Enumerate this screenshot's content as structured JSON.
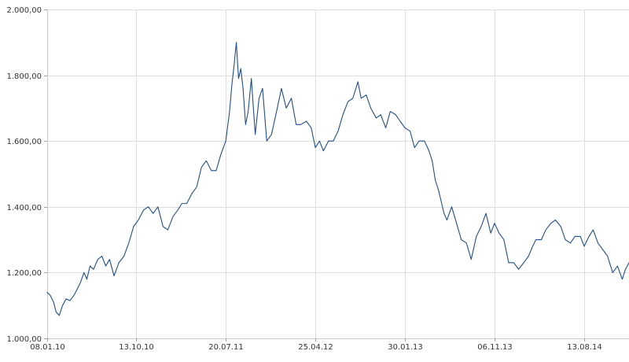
{
  "chart_data": {
    "type": "line",
    "title": "",
    "xlabel": "",
    "ylabel": "",
    "ylim": [
      1000,
      2000
    ],
    "xlim": [
      "2010-01-08",
      "2014-12-31"
    ],
    "grid": true,
    "legend": "none",
    "colors": {
      "line": "#1f4e8c",
      "grid": "#dedede",
      "axis": "#c9c9c9",
      "text": "#333333"
    },
    "y_ticks": [
      {
        "value": 1000,
        "label": "1.000,00"
      },
      {
        "value": 1200,
        "label": "1.200,00"
      },
      {
        "value": 1400,
        "label": "1.400,00"
      },
      {
        "value": 1600,
        "label": "1.600,00"
      },
      {
        "value": 1800,
        "label": "1.800,00"
      },
      {
        "value": 2000,
        "label": "2.000,00"
      }
    ],
    "x_ticks": [
      {
        "date": "2010-01-08",
        "label": "08.01.10"
      },
      {
        "date": "2010-10-13",
        "label": "13.10.10"
      },
      {
        "date": "2011-07-20",
        "label": "20.07.11"
      },
      {
        "date": "2012-04-25",
        "label": "25.04.12"
      },
      {
        "date": "2013-01-30",
        "label": "30.01.13"
      },
      {
        "date": "2013-11-06",
        "label": "06.11.13"
      },
      {
        "date": "2014-08-13",
        "label": "13.08.14"
      }
    ],
    "series": [
      {
        "x": [
          "2010-01-08",
          "2010-01-18",
          "2010-01-28",
          "2010-02-05",
          "2010-02-15",
          "2010-02-25",
          "2010-03-08",
          "2010-03-20",
          "2010-04-01",
          "2010-04-12",
          "2010-04-22",
          "2010-05-03",
          "2010-05-12",
          "2010-05-22",
          "2010-06-02",
          "2010-06-15",
          "2010-06-28",
          "2010-07-10",
          "2010-07-22",
          "2010-08-05",
          "2010-08-20",
          "2010-09-05",
          "2010-09-20",
          "2010-10-05",
          "2010-10-20",
          "2010-11-05",
          "2010-11-20",
          "2010-12-05",
          "2010-12-20",
          "2011-01-05",
          "2011-01-20",
          "2011-02-05",
          "2011-02-20",
          "2011-03-05",
          "2011-03-20",
          "2011-04-05",
          "2011-04-20",
          "2011-05-05",
          "2011-05-20",
          "2011-06-05",
          "2011-06-20",
          "2011-07-05",
          "2011-07-20",
          "2011-08-01",
          "2011-08-08",
          "2011-08-15",
          "2011-08-22",
          "2011-08-29",
          "2011-09-05",
          "2011-09-12",
          "2011-09-20",
          "2011-09-28",
          "2011-10-08",
          "2011-10-20",
          "2011-11-01",
          "2011-11-12",
          "2011-11-25",
          "2011-12-10",
          "2011-12-28",
          "2012-01-10",
          "2012-01-25",
          "2012-02-10",
          "2012-02-25",
          "2012-03-10",
          "2012-03-28",
          "2012-04-12",
          "2012-04-25",
          "2012-05-08",
          "2012-05-20",
          "2012-06-05",
          "2012-06-20",
          "2012-07-05",
          "2012-07-20",
          "2012-08-05",
          "2012-08-20",
          "2012-09-05",
          "2012-09-15",
          "2012-10-01",
          "2012-10-15",
          "2012-11-01",
          "2012-11-15",
          "2012-12-01",
          "2012-12-15",
          "2013-01-01",
          "2013-01-15",
          "2013-01-30",
          "2013-02-15",
          "2013-03-01",
          "2013-03-15",
          "2013-04-01",
          "2013-04-15",
          "2013-04-25",
          "2013-05-05",
          "2013-05-15",
          "2013-06-01",
          "2013-06-10",
          "2013-06-25",
          "2013-07-10",
          "2013-07-25",
          "2013-08-10",
          "2013-08-25",
          "2013-09-10",
          "2013-09-25",
          "2013-10-10",
          "2013-10-25",
          "2013-11-06",
          "2013-11-20",
          "2013-12-05",
          "2013-12-20",
          "2014-01-05",
          "2014-01-20",
          "2014-02-05",
          "2014-02-20",
          "2014-03-05",
          "2014-03-15",
          "2014-04-01",
          "2014-04-15",
          "2014-05-01",
          "2014-05-15",
          "2014-06-01",
          "2014-06-15",
          "2014-07-01",
          "2014-07-15",
          "2014-08-01",
          "2014-08-13",
          "2014-08-28",
          "2014-09-10",
          "2014-09-25",
          "2014-10-10",
          "2014-10-25",
          "2014-11-10",
          "2014-11-25",
          "2014-12-10",
          "2014-12-20",
          "2014-12-31"
        ],
        "y": [
          1140,
          1130,
          1110,
          1080,
          1070,
          1100,
          1120,
          1115,
          1130,
          1150,
          1170,
          1200,
          1180,
          1220,
          1210,
          1240,
          1250,
          1220,
          1240,
          1190,
          1230,
          1250,
          1290,
          1340,
          1360,
          1390,
          1400,
          1380,
          1400,
          1340,
          1330,
          1370,
          1390,
          1410,
          1410,
          1440,
          1460,
          1520,
          1540,
          1510,
          1510,
          1560,
          1600,
          1690,
          1770,
          1830,
          1900,
          1790,
          1820,
          1760,
          1650,
          1690,
          1790,
          1620,
          1730,
          1760,
          1600,
          1620,
          1700,
          1760,
          1700,
          1730,
          1650,
          1650,
          1660,
          1640,
          1580,
          1600,
          1570,
          1600,
          1600,
          1630,
          1680,
          1720,
          1730,
          1780,
          1730,
          1740,
          1700,
          1670,
          1680,
          1640,
          1690,
          1680,
          1660,
          1640,
          1630,
          1580,
          1600,
          1600,
          1570,
          1540,
          1480,
          1450,
          1380,
          1360,
          1400,
          1350,
          1300,
          1290,
          1240,
          1310,
          1340,
          1380,
          1320,
          1350,
          1320,
          1300,
          1230,
          1230,
          1210,
          1230,
          1250,
          1280,
          1300,
          1300,
          1330,
          1350,
          1360,
          1340,
          1300,
          1290,
          1310,
          1310,
          1280,
          1310,
          1330,
          1290,
          1270,
          1250,
          1200,
          1220,
          1180,
          1210,
          1230
        ]
      }
    ]
  }
}
